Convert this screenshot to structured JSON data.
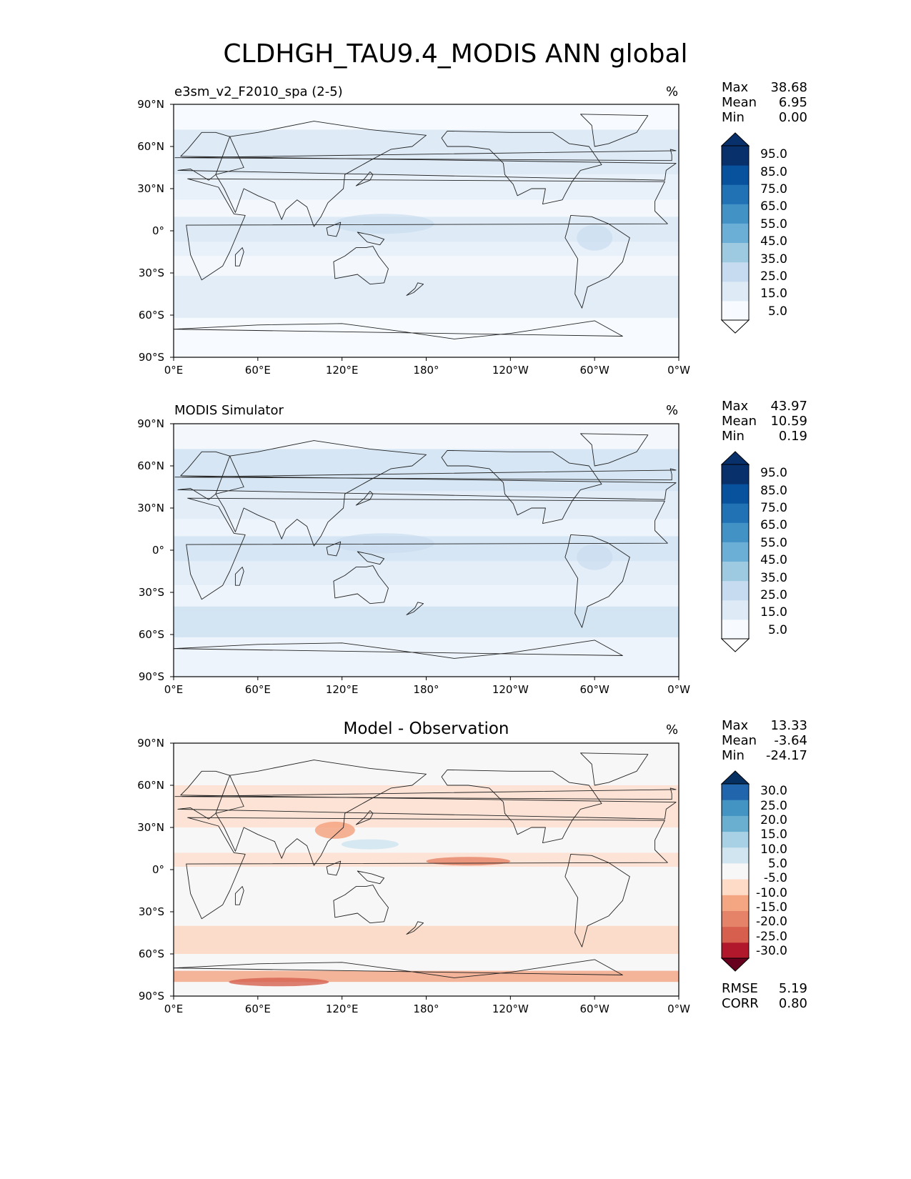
{
  "title": "CLDHGH_TAU9.4_MODIS ANN global",
  "x_ticks": [
    "0°E",
    "60°E",
    "120°E",
    "180°",
    "120°W",
    "60°W",
    "0°W"
  ],
  "y_ticks": [
    "90°N",
    "60°N",
    "30°N",
    "0°",
    "30°S",
    "60°S",
    "90°S"
  ],
  "panels": [
    {
      "title": "e3sm_v2_F2010_spa (2-5)",
      "units": "%",
      "stats": {
        "max_label": "Max",
        "max": "38.68",
        "mean_label": "Mean",
        "mean": "6.95",
        "min_label": "Min",
        "min": "0.00"
      },
      "colorbar": {
        "labels": [
          "95.0",
          "85.0",
          "75.0",
          "65.0",
          "55.0",
          "45.0",
          "35.0",
          "25.0",
          "15.0",
          "5.0"
        ],
        "colors": [
          "#f7fbff",
          "#deebf7",
          "#c6dbef",
          "#9ecae1",
          "#6baed6",
          "#4292c6",
          "#2171b5",
          "#08519c",
          "#08306b"
        ],
        "under_color": "#ffffff",
        "over_color": "#08306b"
      }
    },
    {
      "title": "MODIS Simulator",
      "units": "%",
      "stats": {
        "max_label": "Max",
        "max": "43.97",
        "mean_label": "Mean",
        "mean": "10.59",
        "min_label": "Min",
        "min": "0.19"
      },
      "colorbar": {
        "labels": [
          "95.0",
          "85.0",
          "75.0",
          "65.0",
          "55.0",
          "45.0",
          "35.0",
          "25.0",
          "15.0",
          "5.0"
        ],
        "colors": [
          "#f7fbff",
          "#deebf7",
          "#c6dbef",
          "#9ecae1",
          "#6baed6",
          "#4292c6",
          "#2171b5",
          "#08519c",
          "#08306b"
        ],
        "under_color": "#ffffff",
        "over_color": "#08306b"
      }
    },
    {
      "title": "Model - Observation",
      "units": "%",
      "stats": {
        "max_label": "Max",
        "max": "13.33",
        "mean_label": "Mean",
        "mean": "-3.64",
        "min_label": "Min",
        "min": "-24.17"
      },
      "colorbar": {
        "labels": [
          "30.0",
          "25.0",
          "20.0",
          "15.0",
          "10.0",
          "5.0",
          "-5.0",
          "-10.0",
          "-15.0",
          "-20.0",
          "-25.0",
          "-30.0"
        ],
        "colors": [
          "#b2182b",
          "#d6604d",
          "#e58368",
          "#f4a582",
          "#fddbc7",
          "#f7f7f7",
          "#d1e5f0",
          "#a9d1e5",
          "#6aaed0",
          "#4393c3",
          "#2166ac"
        ],
        "under_color": "#67001f",
        "over_color": "#053061"
      },
      "metrics": {
        "rmse_label": "RMSE",
        "rmse": "5.19",
        "corr_label": "CORR",
        "corr": "0.80"
      }
    }
  ]
}
